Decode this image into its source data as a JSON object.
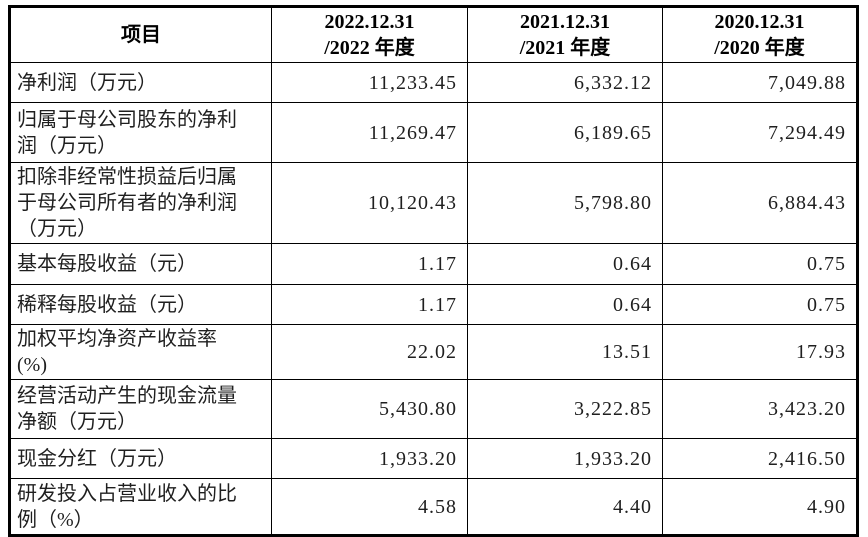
{
  "page": {
    "background": "#ffffff",
    "border_color": "#000000",
    "text_color": "#1f1f1f"
  },
  "table": {
    "columns": [
      {
        "label": "项目"
      },
      {
        "line1": "2022.12.31",
        "line2": "/2022 年度"
      },
      {
        "line1": "2021.12.31",
        "line2": "/2021 年度"
      },
      {
        "line1": "2020.12.31",
        "line2": "/2020 年度"
      }
    ],
    "rows": [
      {
        "label": "净利润（万元）",
        "values": [
          "11,233.45",
          "6,332.12",
          "7,049.88"
        ]
      },
      {
        "label": "归属于母公司股东的净利润（万元）",
        "values": [
          "11,269.47",
          "6,189.65",
          "7,294.49"
        ]
      },
      {
        "label": "扣除非经常性损益后归属于母公司所有者的净利润（万元）",
        "values": [
          "10,120.43",
          "5,798.80",
          "6,884.43"
        ]
      },
      {
        "label": "基本每股收益（元）",
        "values": [
          "1.17",
          "0.64",
          "0.75"
        ]
      },
      {
        "label": "稀释每股收益（元）",
        "values": [
          "1.17",
          "0.64",
          "0.75"
        ]
      },
      {
        "label": "加权平均净资产收益率(%)",
        "values": [
          "22.02",
          "13.51",
          "17.93"
        ]
      },
      {
        "label": "经营活动产生的现金流量净额（万元）",
        "values": [
          "5,430.80",
          "3,222.85",
          "3,423.20"
        ]
      },
      {
        "label": "现金分红（万元）",
        "values": [
          "1,933.20",
          "1,933.20",
          "2,416.50"
        ]
      },
      {
        "label": "研发投入占营业收入的比例（%）",
        "values": [
          "4.58",
          "4.40",
          "4.90"
        ]
      }
    ]
  }
}
